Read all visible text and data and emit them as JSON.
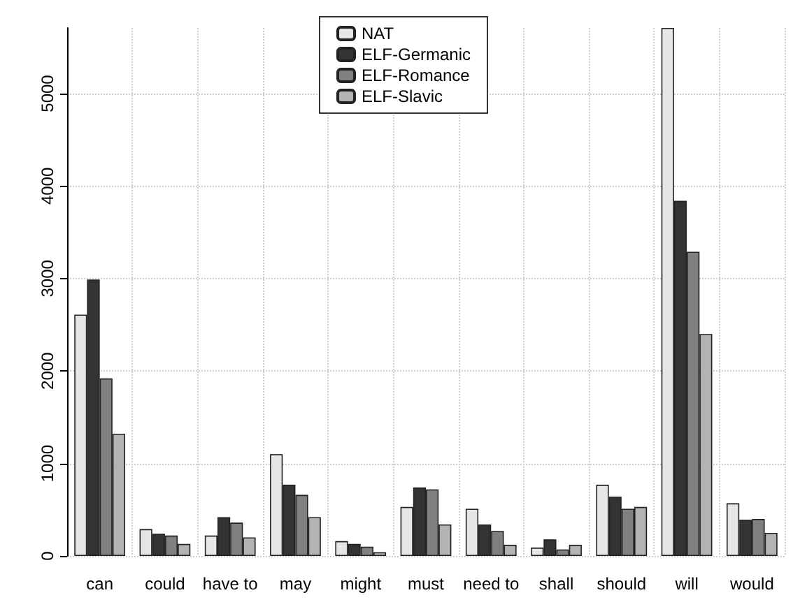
{
  "chart_data": {
    "type": "bar",
    "categories": [
      "can",
      "could",
      "have to",
      "may",
      "might",
      "must",
      "need to",
      "shall",
      "should",
      "will",
      "would"
    ],
    "series": [
      {
        "name": "NAT",
        "color": "#e6e6e6",
        "values": [
          2610,
          290,
          220,
          1100,
          160,
          530,
          510,
          90,
          770,
          5710,
          570
        ]
      },
      {
        "name": "ELF-Germanic",
        "color": "#333333",
        "values": [
          2990,
          240,
          420,
          770,
          130,
          740,
          340,
          180,
          640,
          3840,
          390
        ]
      },
      {
        "name": "ELF-Romance",
        "color": "#808080",
        "values": [
          1920,
          220,
          360,
          660,
          100,
          720,
          270,
          70,
          510,
          3290,
          400
        ]
      },
      {
        "name": "ELF-Slavic",
        "color": "#b3b3b3",
        "values": [
          1320,
          130,
          200,
          420,
          40,
          340,
          120,
          120,
          530,
          2400,
          250
        ]
      }
    ],
    "ylim": [
      0,
      5710
    ],
    "yticks": [
      0,
      1000,
      2000,
      3000,
      4000,
      5000
    ],
    "grid": true,
    "legend": "top"
  }
}
